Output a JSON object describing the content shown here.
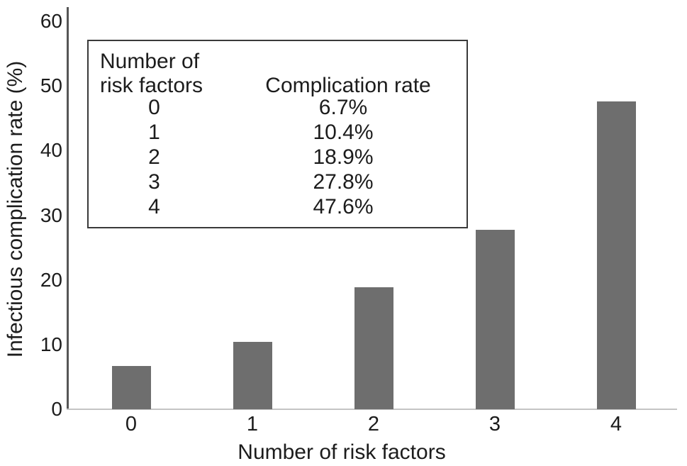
{
  "chart_data": {
    "type": "bar",
    "categories": [
      "0",
      "1",
      "2",
      "3",
      "4"
    ],
    "values": [
      6.7,
      10.4,
      18.9,
      27.8,
      47.6
    ],
    "title": "",
    "xlabel": "Number of risk factors",
    "ylabel": "Infectious complication rate (%)",
    "ylim": [
      0,
      60
    ],
    "yticks": [
      0,
      10,
      20,
      30,
      40,
      50,
      60
    ],
    "grid": false,
    "legend_position": "none",
    "inset_table": {
      "col1_header_line1": "Number of",
      "col1_header_line2": "risk factors",
      "col2_header": "Complication rate",
      "rows": [
        {
          "risk_factors": "0",
          "rate": "6.7%"
        },
        {
          "risk_factors": "1",
          "rate": "10.4%"
        },
        {
          "ris_factors_note": "",
          "risk_factors": "2",
          "rate": "18.9%"
        },
        {
          "risk_factors": "3",
          "rate": "27.8%"
        },
        {
          "risk_factors": "4",
          "rate": "47.6%"
        }
      ]
    },
    "colors": {
      "bar": "#6e6e6e",
      "text": "#1c1c1c",
      "y_axis_line": "#565656",
      "x_axis_line": "#c4c4c4",
      "inset_border": "#3a3a3a",
      "background": "#ffffff"
    }
  }
}
